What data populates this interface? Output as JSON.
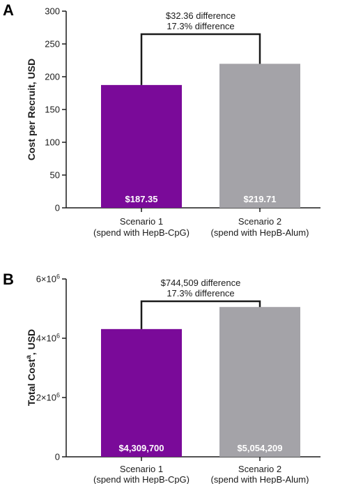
{
  "chart_data": [
    {
      "panel": "A",
      "type": "bar",
      "ylabel": "Cost per Recruit, USD",
      "ylim": [
        0,
        300
      ],
      "yticks": [
        0,
        50,
        100,
        150,
        200,
        250,
        300
      ],
      "ytick_labels": [
        "0",
        "50",
        "100",
        "150",
        "200",
        "250",
        "300"
      ],
      "categories": [
        "Scenario 1",
        "Scenario 2"
      ],
      "category_sublabels": [
        "(spend with HepB-CpG)",
        "(spend with HepB-Alum)"
      ],
      "values": [
        187.35,
        219.71
      ],
      "value_labels": [
        "$187.35",
        "$219.71"
      ],
      "colors": [
        "#7a0a99",
        "#a4a3a8"
      ],
      "annotation": [
        "$32.36 difference",
        "17.3% difference"
      ],
      "grid": false
    },
    {
      "panel": "B",
      "type": "bar",
      "ylabel": "Total Cost",
      "ylabel_superscript": "a",
      "ylabel_suffix": ", USD",
      "ylim": [
        0,
        6000000
      ],
      "yticks": [
        0,
        2000000,
        4000000,
        6000000
      ],
      "ytick_labels": [
        "0",
        "2×10",
        "4×10",
        "6×10"
      ],
      "ytick_exponents": [
        "",
        "6",
        "6",
        "6"
      ],
      "categories": [
        "Scenario 1",
        "Scenario 2"
      ],
      "category_sublabels": [
        "(spend with HepB-CpG)",
        "(spend with HepB-Alum)"
      ],
      "values": [
        4309700,
        5054209
      ],
      "value_labels": [
        "$4,309,700",
        "$5,054,209"
      ],
      "colors": [
        "#7a0a99",
        "#a4a3a8"
      ],
      "annotation": [
        "$744,509 difference",
        "17.3% difference"
      ],
      "grid": false
    }
  ]
}
